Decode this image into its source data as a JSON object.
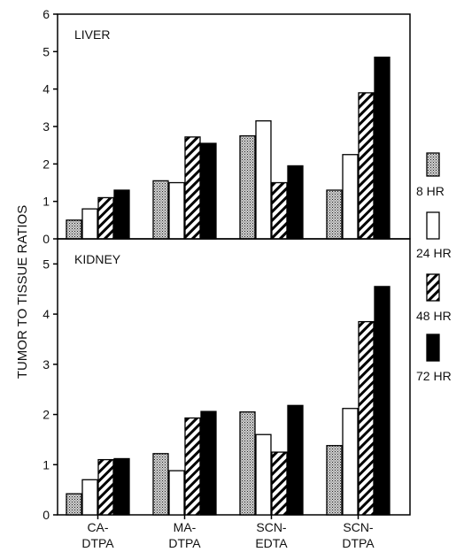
{
  "chart_data": {
    "type": "bar",
    "ylabel": "TUMOR TO TISSUE RATIOS",
    "categories": [
      [
        "CA-",
        "DTPA"
      ],
      [
        "MA-",
        "DTPA"
      ],
      [
        "SCN-",
        "EDTA"
      ],
      [
        "SCN-",
        "DTPA"
      ]
    ],
    "legend": [
      "8 HR",
      "24 HR",
      "48 HR",
      "72 HR"
    ],
    "series_styles": [
      "stippled",
      "white",
      "hatched",
      "black"
    ],
    "panels": [
      {
        "label": "LIVER",
        "ylim": [
          0,
          6
        ],
        "yticks": [
          0,
          1,
          2,
          3,
          4,
          5,
          6
        ],
        "series": [
          {
            "name": "8 HR",
            "values": [
              0.5,
              1.55,
              2.75,
              1.3
            ]
          },
          {
            "name": "24 HR",
            "values": [
              0.8,
              1.5,
              3.15,
              2.25
            ]
          },
          {
            "name": "48 HR",
            "values": [
              1.1,
              2.72,
              1.5,
              3.9
            ]
          },
          {
            "name": "72 HR",
            "values": [
              1.3,
              2.55,
              1.95,
              4.85
            ]
          }
        ]
      },
      {
        "label": "KIDNEY",
        "ylim": [
          0,
          5.5
        ],
        "yticks": [
          0,
          1,
          2,
          3,
          4,
          5
        ],
        "series": [
          {
            "name": "8 HR",
            "values": [
              0.42,
              1.22,
              2.05,
              1.38
            ]
          },
          {
            "name": "24 HR",
            "values": [
              0.7,
              0.88,
              1.6,
              2.12
            ]
          },
          {
            "name": "48 HR",
            "values": [
              1.1,
              1.93,
              1.25,
              3.85
            ]
          },
          {
            "name": "72 HR",
            "values": [
              1.12,
              2.06,
              2.18,
              4.55
            ]
          }
        ]
      }
    ]
  }
}
